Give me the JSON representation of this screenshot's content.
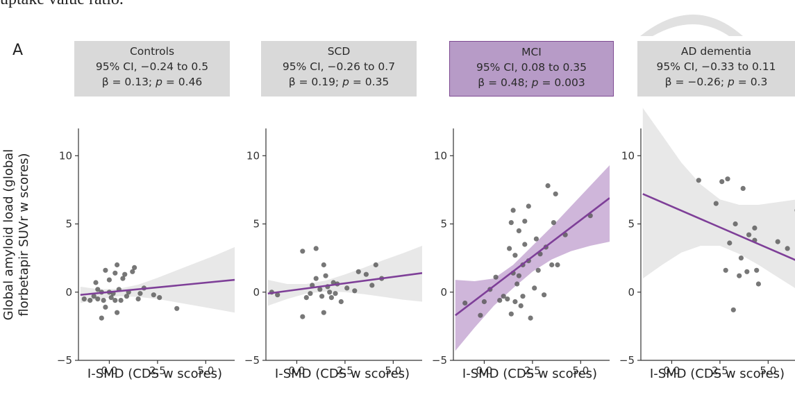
{
  "header_text": "uptake value ratio.",
  "panel_letter": "A",
  "y_axis_label_lines": [
    "Global amyloid load (global",
    "florbetapir SUVr w scores)"
  ],
  "colors": {
    "line": "#7e3f98",
    "band_gray": "#e6e6e6",
    "band_purple": "#c7a9d3",
    "point": "#555555",
    "box_gray": "#d9d9d9",
    "box_highlight": "#b79bc7"
  },
  "chart_data": [
    {
      "type": "scatter",
      "group": "Controls",
      "ci_text": "95% CI, −0.24 to 0.5",
      "beta_text": "β = 0.13; ",
      "p_text": " = 0.46",
      "highlight": false,
      "xlabel": "I-SMD (CDS w scores)",
      "xlim": [
        -1.6,
        6.5
      ],
      "ylim": [
        -5,
        12
      ],
      "x_ticks": [
        "0.0",
        "2.5",
        "5.0"
      ],
      "y_ticks": [
        "10",
        "5",
        "0",
        "−5"
      ],
      "fit": {
        "x": [
          -1.5,
          6.5
        ],
        "y": [
          -0.2,
          0.9
        ]
      },
      "band": {
        "x": [
          -1.5,
          -0.5,
          0.5,
          1.5,
          2.5,
          3.5,
          4.5,
          5.5,
          6.5
        ],
        "lower": [
          -0.8,
          -0.5,
          -0.3,
          -0.35,
          -0.5,
          -0.75,
          -1.0,
          -1.25,
          -1.5
        ],
        "upper": [
          0.4,
          0.2,
          0.25,
          0.55,
          1.05,
          1.6,
          2.15,
          2.7,
          3.3
        ]
      },
      "points": [
        [
          -1.3,
          -0.5
        ],
        [
          -1.0,
          -0.6
        ],
        [
          -0.8,
          -0.3
        ],
        [
          -0.7,
          0.7
        ],
        [
          -0.6,
          -0.5
        ],
        [
          -0.6,
          0.2
        ],
        [
          -0.4,
          -1.9
        ],
        [
          -0.4,
          0.0
        ],
        [
          -0.3,
          -0.6
        ],
        [
          -0.2,
          1.6
        ],
        [
          -0.2,
          -1.1
        ],
        [
          0.0,
          0.9
        ],
        [
          0.0,
          0.0
        ],
        [
          0.1,
          -0.4
        ],
        [
          0.2,
          -0.1
        ],
        [
          0.3,
          -0.6
        ],
        [
          0.3,
          1.4
        ],
        [
          0.4,
          2.0
        ],
        [
          0.4,
          -1.5
        ],
        [
          0.5,
          0.2
        ],
        [
          0.6,
          -0.6
        ],
        [
          0.7,
          1.0
        ],
        [
          0.8,
          1.3
        ],
        [
          0.9,
          -0.3
        ],
        [
          1.0,
          0.0
        ],
        [
          1.2,
          1.5
        ],
        [
          1.3,
          1.8
        ],
        [
          1.5,
          -0.5
        ],
        [
          1.6,
          -0.1
        ],
        [
          1.8,
          0.3
        ],
        [
          2.3,
          -0.2
        ],
        [
          2.6,
          -0.4
        ],
        [
          3.5,
          -1.2
        ]
      ]
    },
    {
      "type": "scatter",
      "group": "SCD",
      "ci_text": "95% CI, −0.26 to 0.7",
      "beta_text": "β = 0.19; ",
      "p_text": " = 0.35",
      "highlight": false,
      "xlabel": "I-SMD (CDS w scores)",
      "xlim": [
        -1.6,
        6.5
      ],
      "ylim": [
        -5,
        12
      ],
      "x_ticks": [
        "0.0",
        "2.5",
        "5.0"
      ],
      "y_ticks": [
        "10",
        "5",
        "0",
        "−5"
      ],
      "fit": {
        "x": [
          -1.5,
          6.5
        ],
        "y": [
          -0.1,
          1.4
        ]
      },
      "band": {
        "x": [
          -1.5,
          -0.5,
          0.5,
          1.5,
          2.5,
          3.5,
          4.5,
          5.5,
          6.5
        ],
        "lower": [
          -1.0,
          -0.5,
          -0.1,
          0.05,
          0.0,
          -0.15,
          -0.35,
          -0.55,
          -0.7
        ],
        "upper": [
          0.9,
          0.6,
          0.6,
          0.85,
          1.3,
          1.8,
          2.35,
          2.85,
          3.4
        ]
      },
      "points": [
        [
          -1.3,
          0.0
        ],
        [
          -1.0,
          -0.2
        ],
        [
          0.3,
          3.0
        ],
        [
          0.3,
          -1.8
        ],
        [
          0.5,
          -0.4
        ],
        [
          0.7,
          -0.1
        ],
        [
          0.8,
          0.5
        ],
        [
          1.0,
          1.0
        ],
        [
          1.0,
          3.2
        ],
        [
          1.2,
          0.2
        ],
        [
          1.3,
          -0.3
        ],
        [
          1.4,
          2.0
        ],
        [
          1.4,
          -1.5
        ],
        [
          1.5,
          1.2
        ],
        [
          1.6,
          0.4
        ],
        [
          1.7,
          0.0
        ],
        [
          1.8,
          -0.4
        ],
        [
          1.9,
          0.7
        ],
        [
          2.0,
          -0.1
        ],
        [
          2.1,
          0.6
        ],
        [
          2.3,
          -0.7
        ],
        [
          2.6,
          0.3
        ],
        [
          3.0,
          0.1
        ],
        [
          3.2,
          1.5
        ],
        [
          3.6,
          1.3
        ],
        [
          3.9,
          0.5
        ],
        [
          4.1,
          2.0
        ],
        [
          4.4,
          1.0
        ]
      ]
    },
    {
      "type": "scatter",
      "group": "MCI",
      "ci_text": "95% CI, 0.08 to 0.35",
      "beta_text": "β = 0.48; ",
      "p_text": " = 0.003",
      "highlight": true,
      "xlabel": "I-SMD (CDS w scores)",
      "xlim": [
        -1.6,
        6.5
      ],
      "ylim": [
        -5,
        12
      ],
      "x_ticks": [
        "0.0",
        "2.5",
        "5.0"
      ],
      "y_ticks": [
        "10",
        "5",
        "0",
        "−5"
      ],
      "fit": {
        "x": [
          -1.5,
          6.5
        ],
        "y": [
          -1.7,
          6.9
        ]
      },
      "band": {
        "x": [
          -1.5,
          -0.5,
          0.5,
          1.5,
          2.5,
          3.5,
          4.5,
          5.5,
          6.5
        ],
        "lower": [
          -4.3,
          -2.6,
          -1.0,
          0.3,
          1.5,
          2.4,
          3.0,
          3.4,
          3.7
        ],
        "upper": [
          0.9,
          0.8,
          1.0,
          2.0,
          3.4,
          4.8,
          6.3,
          7.8,
          9.3
        ]
      },
      "points": [
        [
          -1.0,
          -0.8
        ],
        [
          -0.2,
          -1.7
        ],
        [
          0.0,
          -0.7
        ],
        [
          0.3,
          0.2
        ],
        [
          0.6,
          1.1
        ],
        [
          0.8,
          -0.6
        ],
        [
          1.0,
          -0.3
        ],
        [
          1.2,
          -0.5
        ],
        [
          1.3,
          3.2
        ],
        [
          1.4,
          -1.6
        ],
        [
          1.4,
          5.1
        ],
        [
          1.5,
          1.4
        ],
        [
          1.5,
          6.0
        ],
        [
          1.6,
          2.7
        ],
        [
          1.6,
          -0.7
        ],
        [
          1.7,
          0.6
        ],
        [
          1.8,
          1.2
        ],
        [
          1.8,
          4.5
        ],
        [
          1.9,
          -1.0
        ],
        [
          2.0,
          2.0
        ],
        [
          2.0,
          -0.3
        ],
        [
          2.1,
          3.5
        ],
        [
          2.1,
          5.2
        ],
        [
          2.3,
          2.3
        ],
        [
          2.3,
          6.3
        ],
        [
          2.4,
          -1.9
        ],
        [
          2.6,
          0.3
        ],
        [
          2.7,
          3.9
        ],
        [
          2.8,
          1.6
        ],
        [
          2.9,
          2.8
        ],
        [
          3.1,
          -0.2
        ],
        [
          3.2,
          3.3
        ],
        [
          3.3,
          7.8
        ],
        [
          3.5,
          2.0
        ],
        [
          3.6,
          5.1
        ],
        [
          3.7,
          7.2
        ],
        [
          3.8,
          2.0
        ],
        [
          4.2,
          4.2
        ],
        [
          5.5,
          5.6
        ]
      ]
    },
    {
      "type": "scatter",
      "group": "AD dementia",
      "ci_text": "95% CI, −0.33 to 0.11",
      "beta_text": "β = −0.26; ",
      "p_text": " = 0.3",
      "highlight": false,
      "xlabel": "I-SMD (CDS w scores)",
      "xlim": [
        -1.6,
        6.5
      ],
      "ylim": [
        -5,
        12
      ],
      "x_ticks": [
        "0.0",
        "2.5",
        "5.0"
      ],
      "y_ticks": [
        "10",
        "5",
        "0",
        "−5"
      ],
      "fit": {
        "x": [
          -1.5,
          6.5
        ],
        "y": [
          7.2,
          2.3
        ]
      },
      "band": {
        "x": [
          -1.5,
          -0.5,
          0.5,
          1.5,
          2.5,
          3.5,
          4.5,
          5.5,
          6.5
        ],
        "lower": [
          1.0,
          2.0,
          2.9,
          3.4,
          3.4,
          2.8,
          2.0,
          1.1,
          0.2
        ],
        "upper": [
          13.5,
          11.5,
          9.5,
          7.9,
          6.8,
          6.4,
          6.4,
          6.6,
          6.8
        ]
      },
      "points": [
        [
          1.4,
          8.2
        ],
        [
          2.3,
          6.5
        ],
        [
          2.6,
          8.1
        ],
        [
          2.8,
          1.6
        ],
        [
          2.9,
          8.3
        ],
        [
          3.0,
          3.6
        ],
        [
          3.2,
          -1.3
        ],
        [
          3.3,
          5.0
        ],
        [
          3.5,
          1.2
        ],
        [
          3.6,
          2.5
        ],
        [
          3.7,
          7.6
        ],
        [
          3.9,
          1.5
        ],
        [
          4.0,
          4.2
        ],
        [
          4.3,
          3.8
        ],
        [
          4.3,
          4.7
        ],
        [
          4.4,
          1.6
        ],
        [
          4.5,
          0.6
        ],
        [
          5.5,
          3.7
        ],
        [
          6.0,
          3.2
        ],
        [
          6.5,
          6.0
        ]
      ]
    }
  ]
}
